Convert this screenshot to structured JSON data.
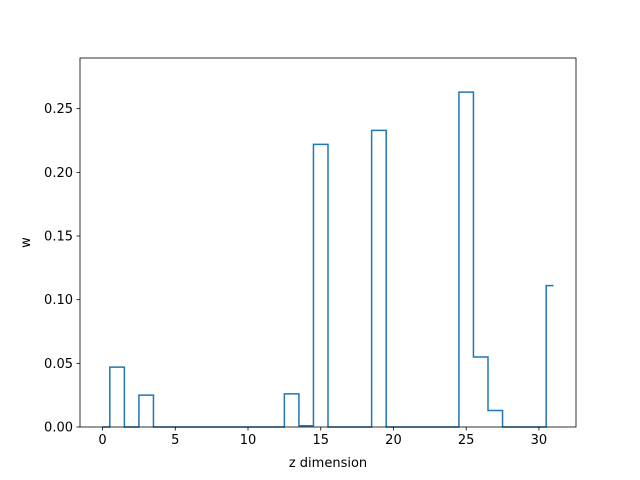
{
  "chart_data": {
    "type": "line",
    "drawstyle": "steps-mid",
    "xlabel": "z dimension",
    "ylabel": "w",
    "xlim": [
      -1.55,
      32.55
    ],
    "ylim": [
      0,
      0.2898
    ],
    "xticks": [
      0,
      5,
      10,
      15,
      20,
      25,
      30
    ],
    "yticks": [
      0.0,
      0.05,
      0.1,
      0.15,
      0.2,
      0.25
    ],
    "xtick_labels": [
      "0",
      "5",
      "10",
      "15",
      "20",
      "25",
      "30"
    ],
    "ytick_labels": [
      "0.00",
      "0.05",
      "0.10",
      "0.15",
      "0.20",
      "0.25"
    ],
    "grid": false,
    "line_color": "#1f77b4",
    "x": [
      0,
      1,
      2,
      3,
      4,
      5,
      6,
      7,
      8,
      9,
      10,
      11,
      12,
      13,
      14,
      15,
      16,
      17,
      18,
      19,
      20,
      21,
      22,
      23,
      24,
      25,
      26,
      27,
      28,
      29,
      30,
      31
    ],
    "y": [
      0,
      0.047,
      0,
      0.025,
      0,
      0,
      0,
      0,
      0,
      0,
      0,
      0,
      0,
      0.026,
      0.001,
      0.222,
      0,
      0,
      0,
      0.233,
      0,
      0,
      0,
      0,
      0,
      0.263,
      0.055,
      0.013,
      0,
      0,
      0,
      0.111
    ]
  }
}
